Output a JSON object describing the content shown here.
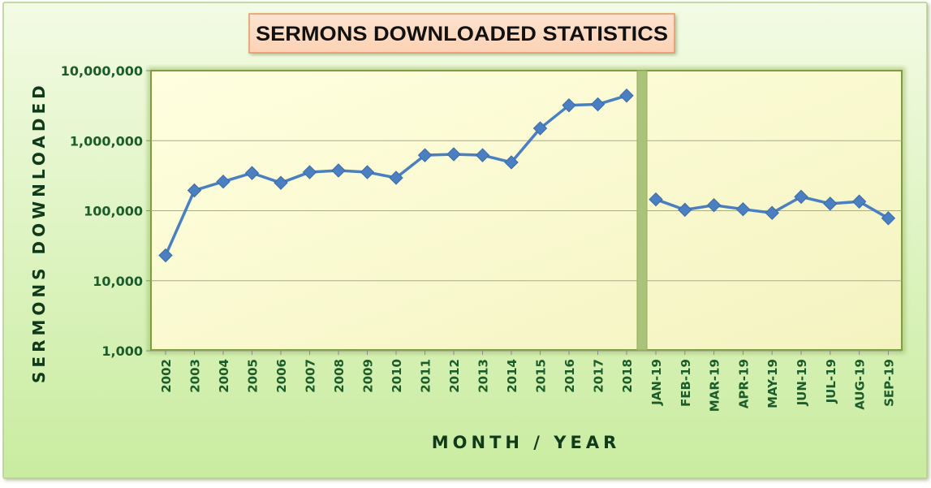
{
  "chart_data": {
    "type": "line",
    "title": "SERMONS DOWNLOADED STATISTICS",
    "xlabel": "MONTH / YEAR",
    "ylabel": "SERMONS DOWNLOADED",
    "yscale": "log",
    "ylim": [
      1000,
      10000000
    ],
    "ytick_values": [
      1000,
      10000,
      100000,
      1000000,
      10000000
    ],
    "ytick_labels": [
      "1,000",
      "10,000",
      "100,000",
      "1,000,000",
      "10,000,000"
    ],
    "grid": true,
    "legend": "none",
    "series_color": "#4a7fc1",
    "categories": [
      "2002",
      "2003",
      "2004",
      "2005",
      "2006",
      "2007",
      "2008",
      "2009",
      "2010",
      "2011",
      "2012",
      "2013",
      "2014",
      "2015",
      "2016",
      "2017",
      "2018",
      "JAN-19",
      "FEB-19",
      "MAR-19",
      "APR-19",
      "MAY-19",
      "JUN-19",
      "JUL-19",
      "AUG-19",
      "SEP-19"
    ],
    "series": [
      {
        "values": [
          23000,
          195000,
          260000,
          345000,
          250000,
          355000,
          375000,
          355000,
          295000,
          620000,
          640000,
          620000,
          490000,
          1500000,
          3200000,
          3300000,
          4400000,
          145000,
          103000,
          120000,
          105000,
          93000,
          158000,
          126000,
          135000,
          78000
        ]
      }
    ]
  }
}
